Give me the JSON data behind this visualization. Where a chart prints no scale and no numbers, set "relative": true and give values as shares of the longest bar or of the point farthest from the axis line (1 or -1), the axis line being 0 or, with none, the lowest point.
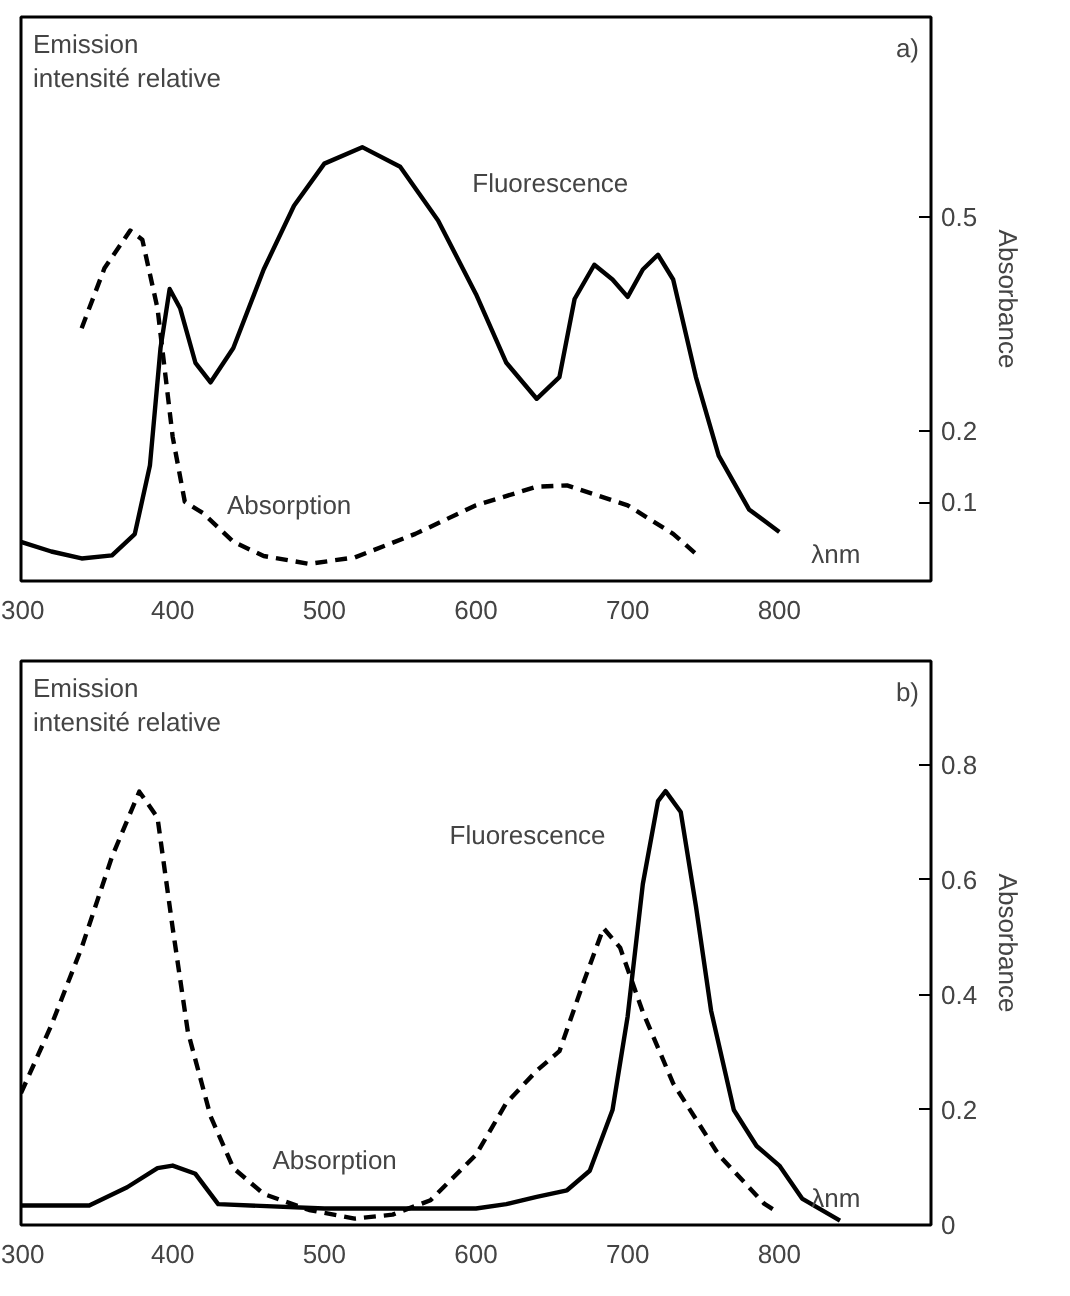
{
  "chart_data": [
    {
      "type": "line",
      "relative": true,
      "ylabel": "Emission intensité relative",
      "xlabel": "λnm",
      "y2label": "Absorbance",
      "annotations": [
        "a)"
      ],
      "xlim": [
        300,
        900
      ],
      "xticks": [
        300,
        400,
        500,
        600,
        700,
        800
      ],
      "y2lim": [
        -0.01,
        0.78
      ],
      "y2ticks": [
        0.1,
        0.2,
        0.5
      ],
      "grid": false,
      "series": [
        {
          "name": "Fluorescence",
          "color": "#000000",
          "line_style": "solid",
          "x": [
            300,
            320,
            340,
            360,
            375,
            385,
            392,
            398,
            405,
            415,
            425,
            440,
            460,
            480,
            500,
            525,
            550,
            575,
            600,
            620,
            640,
            655,
            665,
            678,
            690,
            700,
            710,
            720,
            730,
            745,
            760,
            780,
            800
          ],
          "values": [
            0.09,
            0.068,
            0.052,
            0.059,
            0.108,
            0.266,
            0.537,
            0.673,
            0.628,
            0.503,
            0.458,
            0.537,
            0.718,
            0.865,
            0.962,
            1.0,
            0.955,
            0.831,
            0.661,
            0.503,
            0.42,
            0.47,
            0.65,
            0.729,
            0.695,
            0.655,
            0.718,
            0.752,
            0.695,
            0.47,
            0.289,
            0.165,
            0.113
          ]
        },
        {
          "name": "Absorption",
          "color": "#000000",
          "line_style": "dashed",
          "axis": "y2",
          "x": [
            340,
            355,
            372,
            380,
            390,
            400,
            408,
            420,
            440,
            460,
            490,
            520,
            560,
            600,
            640,
            660,
            700,
            730,
            745
          ],
          "values": [
            0.344,
            0.428,
            0.481,
            0.468,
            0.372,
            0.192,
            0.101,
            0.085,
            0.045,
            0.025,
            0.014,
            0.023,
            0.056,
            0.096,
            0.122,
            0.124,
            0.096,
            0.056,
            0.028
          ]
        }
      ]
    },
    {
      "type": "line",
      "relative": true,
      "ylabel": "Emission intensité relative",
      "xlabel": "λnm",
      "y2label": "Absorbance",
      "annotations": [
        "b)"
      ],
      "xlim": [
        300,
        900
      ],
      "xticks": [
        300,
        400,
        500,
        600,
        700,
        800
      ],
      "y2lim": [
        0,
        0.98
      ],
      "y2ticks": [
        0,
        0.2,
        0.4,
        0.6,
        0.8
      ],
      "grid": false,
      "series": [
        {
          "name": "Fluorescence",
          "color": "#000000",
          "line_style": "solid",
          "x": [
            300,
            345,
            370,
            390,
            400,
            415,
            430,
            500,
            600,
            620,
            640,
            660,
            675,
            690,
            700,
            710,
            720,
            725,
            735,
            745,
            755,
            770,
            785,
            800,
            815,
            840
          ],
          "values": [
            0.045,
            0.045,
            0.087,
            0.131,
            0.137,
            0.118,
            0.048,
            0.038,
            0.038,
            0.048,
            0.065,
            0.08,
            0.125,
            0.265,
            0.481,
            0.786,
            0.977,
            1.0,
            0.952,
            0.735,
            0.494,
            0.265,
            0.182,
            0.137,
            0.061,
            0.01
          ]
        },
        {
          "name": "Absorption",
          "color": "#000000",
          "line_style": "dashed",
          "axis": "y2",
          "x": [
            300,
            320,
            340,
            360,
            378,
            390,
            400,
            410,
            425,
            440,
            460,
            490,
            520,
            545,
            570,
            600,
            620,
            640,
            655,
            670,
            684,
            695,
            710,
            730,
            760,
            790,
            800
          ],
          "values": [
            0.229,
            0.347,
            0.482,
            0.64,
            0.753,
            0.708,
            0.516,
            0.336,
            0.189,
            0.099,
            0.054,
            0.026,
            0.011,
            0.018,
            0.043,
            0.122,
            0.212,
            0.268,
            0.302,
            0.415,
            0.516,
            0.482,
            0.37,
            0.246,
            0.122,
            0.037,
            0.02
          ]
        }
      ]
    }
  ]
}
